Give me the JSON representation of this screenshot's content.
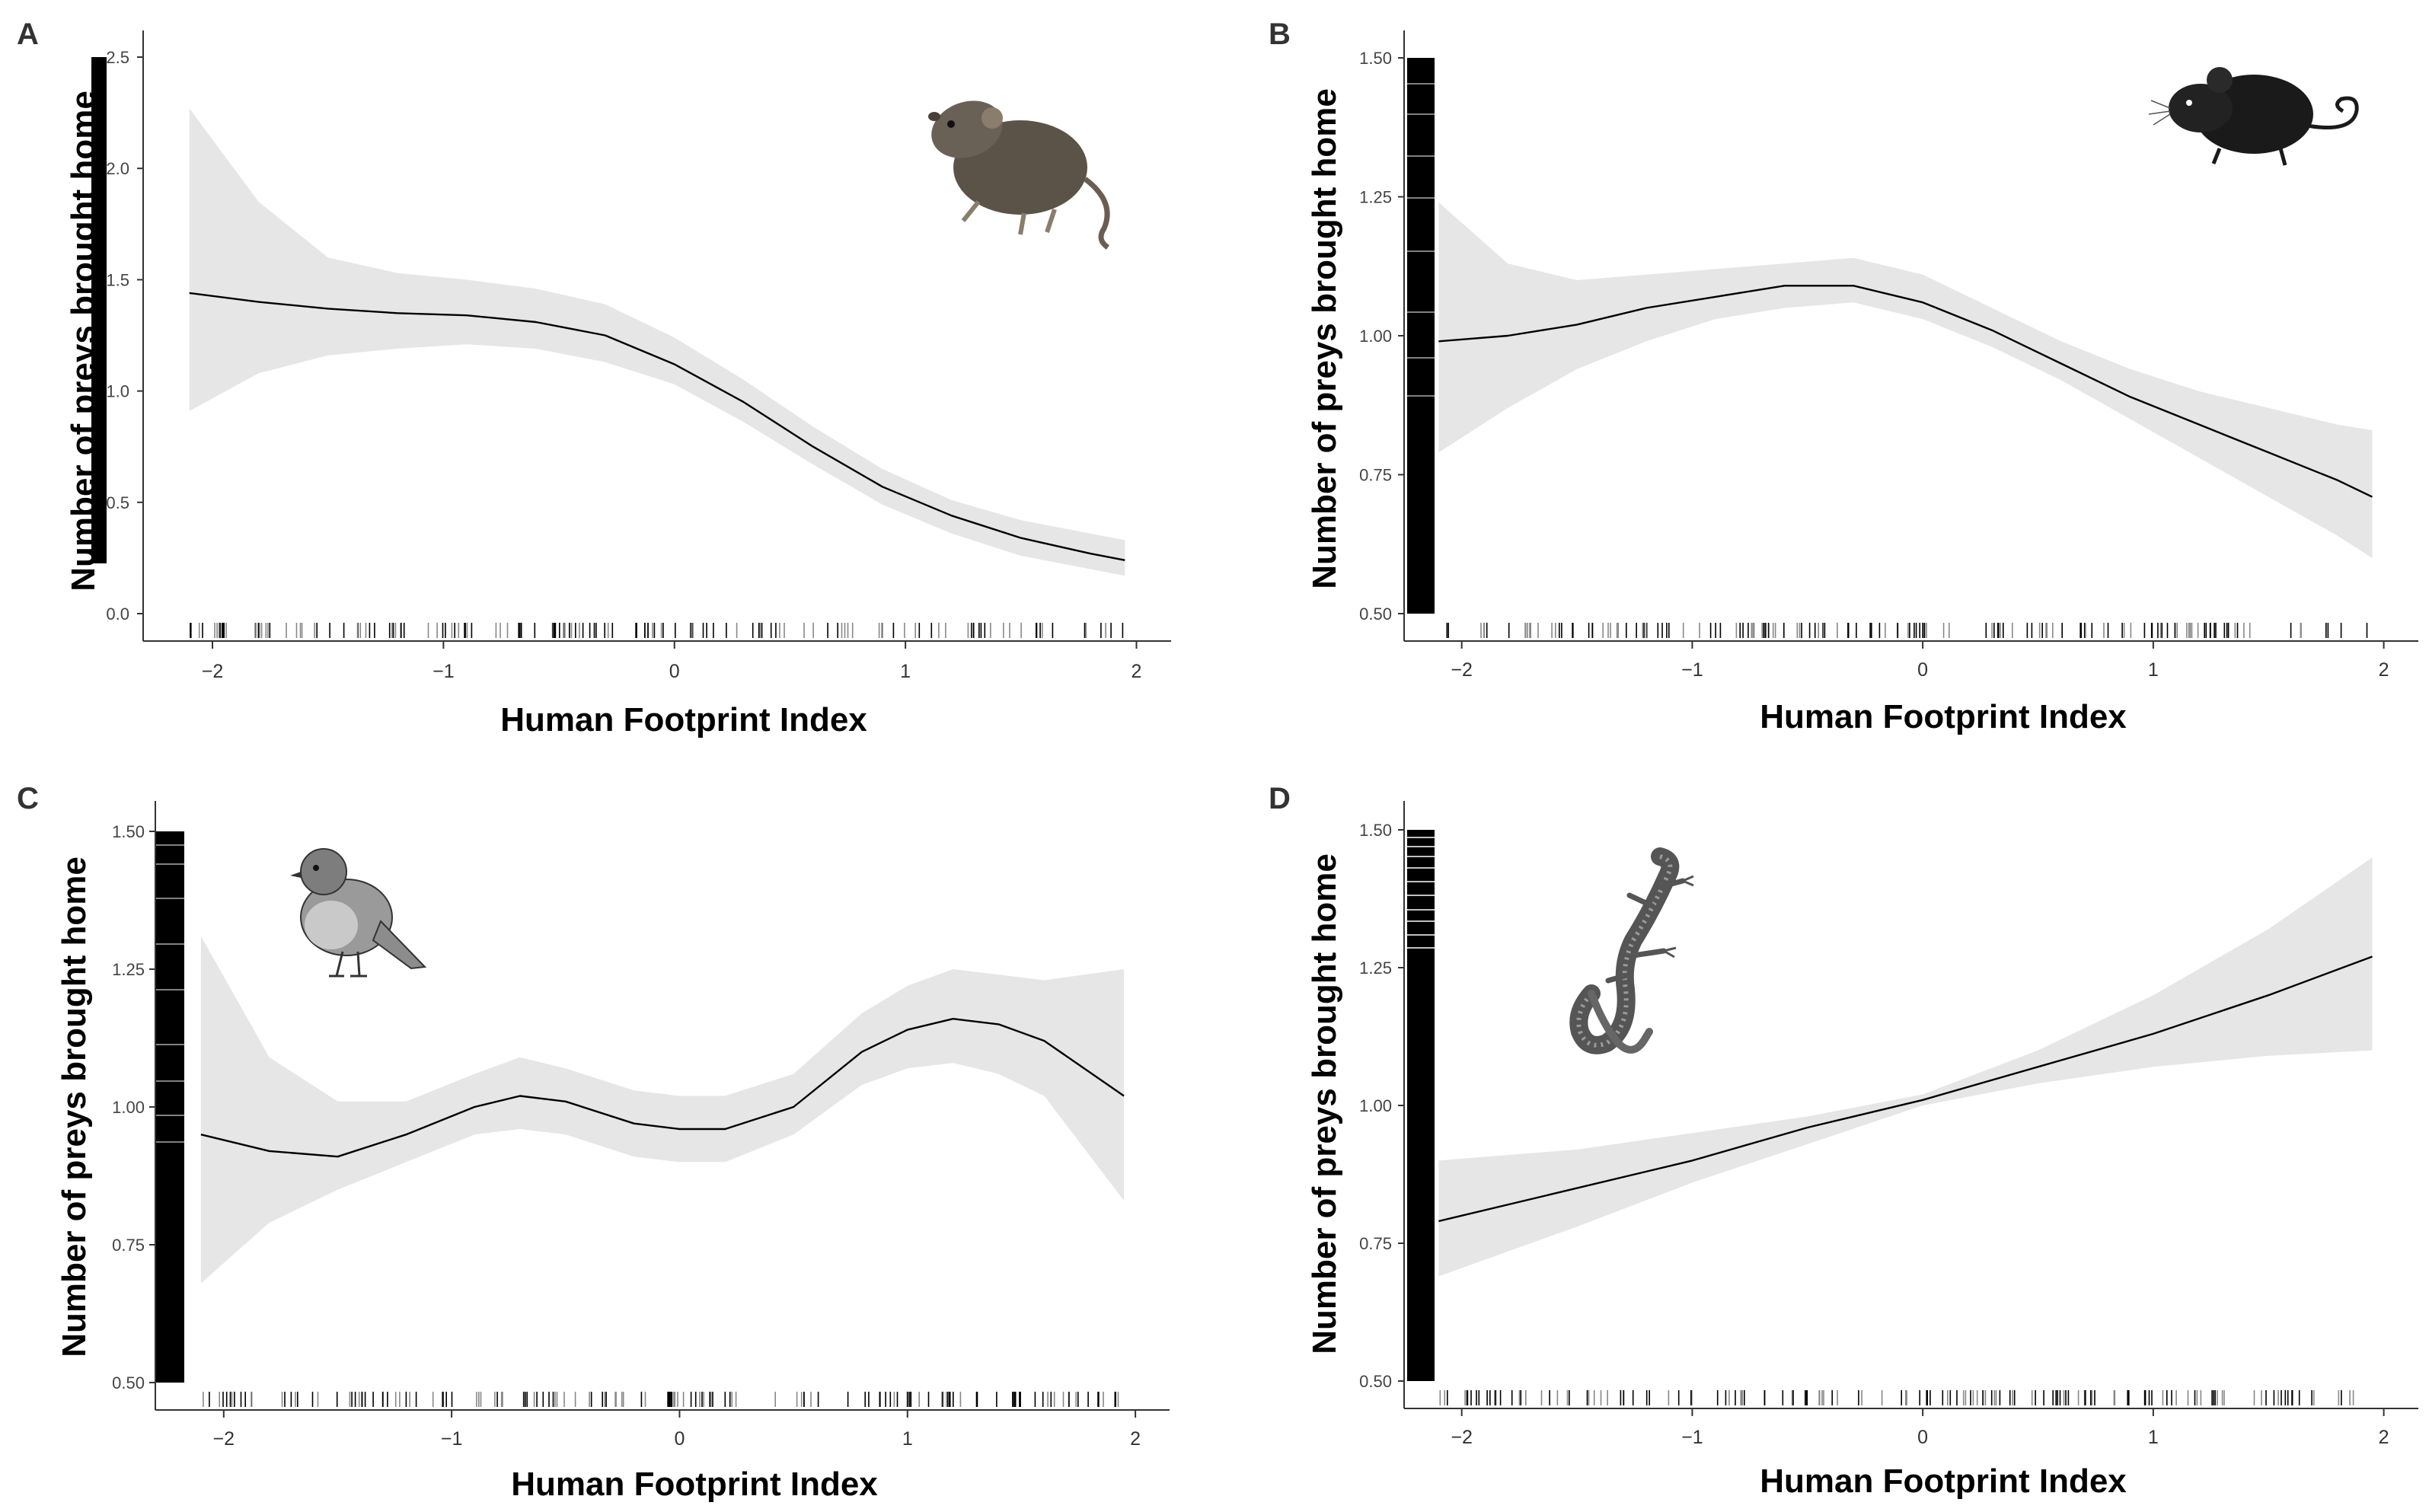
{
  "figure": {
    "line_color": "#000000",
    "band_color": "#e6e6e6",
    "rug_color": "#000000",
    "axis_color": "#333333"
  },
  "chart_data": [
    {
      "panel": "A",
      "type": "line",
      "icon": "vole-icon",
      "xlabel": "Human Footprint Index",
      "ylabel": "Number of preys brought home",
      "xlim": [
        -2.3,
        2.15
      ],
      "ylim": [
        -0.07,
        2.65
      ],
      "xticks": [
        -2,
        -1,
        0,
        1,
        2
      ],
      "xtick_labels": [
        "−2",
        "−1",
        "0",
        "1",
        "2"
      ],
      "yticks": [
        0.0,
        0.5,
        1.0,
        1.5,
        2.0,
        2.5
      ],
      "ytick_labels": [
        "0.0",
        "0.5",
        "1.0",
        "1.5",
        "2.0",
        "2.5"
      ],
      "x": [
        -2.1,
        -1.8,
        -1.5,
        -1.2,
        -0.9,
        -0.6,
        -0.3,
        0.0,
        0.3,
        0.6,
        0.9,
        1.2,
        1.5,
        1.8,
        1.95
      ],
      "fit": [
        1.44,
        1.4,
        1.37,
        1.35,
        1.34,
        1.31,
        1.25,
        1.12,
        0.95,
        0.75,
        0.57,
        0.44,
        0.34,
        0.27,
        0.24
      ],
      "lower": [
        0.91,
        1.08,
        1.16,
        1.19,
        1.21,
        1.19,
        1.13,
        1.03,
        0.86,
        0.67,
        0.49,
        0.36,
        0.26,
        0.2,
        0.17
      ],
      "upper": [
        2.27,
        1.85,
        1.6,
        1.53,
        1.5,
        1.46,
        1.39,
        1.24,
        1.05,
        0.84,
        0.65,
        0.51,
        0.42,
        0.36,
        0.33
      ]
    },
    {
      "panel": "B",
      "type": "line",
      "icon": "mouse-icon",
      "xlabel": "Human Footprint Index",
      "ylabel": "Number of preys brought home",
      "xlim": [
        -2.25,
        2.15
      ],
      "ylim": [
        0.475,
        1.55
      ],
      "xticks": [
        -2,
        -1,
        0,
        1,
        2
      ],
      "xtick_labels": [
        "−2",
        "−1",
        "0",
        "1",
        "2"
      ],
      "yticks": [
        0.5,
        0.75,
        1.0,
        1.25,
        1.5
      ],
      "ytick_labels": [
        "0.50",
        "0.75",
        "1.00",
        "1.25",
        "1.50"
      ],
      "x": [
        -2.1,
        -1.8,
        -1.5,
        -1.2,
        -0.9,
        -0.6,
        -0.3,
        0.0,
        0.3,
        0.6,
        0.9,
        1.2,
        1.5,
        1.8,
        1.95
      ],
      "fit": [
        0.99,
        1.0,
        1.02,
        1.05,
        1.07,
        1.09,
        1.09,
        1.06,
        1.01,
        0.95,
        0.89,
        0.84,
        0.79,
        0.74,
        0.71
      ],
      "lower": [
        0.79,
        0.87,
        0.94,
        0.99,
        1.03,
        1.05,
        1.06,
        1.03,
        0.98,
        0.92,
        0.85,
        0.78,
        0.71,
        0.64,
        0.6
      ],
      "upper": [
        1.24,
        1.13,
        1.1,
        1.11,
        1.12,
        1.13,
        1.14,
        1.11,
        1.05,
        0.99,
        0.94,
        0.9,
        0.87,
        0.84,
        0.83
      ]
    },
    {
      "panel": "C",
      "type": "line",
      "icon": "robin-icon",
      "xlabel": "Human Footprint Index",
      "ylabel": "Number of preys brought home",
      "xlim": [
        -2.3,
        2.15
      ],
      "ylim": [
        0.475,
        1.55
      ],
      "xticks": [
        -2,
        -1,
        0,
        1,
        2
      ],
      "xtick_labels": [
        "−2",
        "−1",
        "0",
        "1",
        "2"
      ],
      "yticks": [
        0.5,
        0.75,
        1.0,
        1.25,
        1.5
      ],
      "ytick_labels": [
        "0.50",
        "0.75",
        "1.00",
        "1.25",
        "1.50"
      ],
      "x": [
        -2.1,
        -1.8,
        -1.5,
        -1.2,
        -0.9,
        -0.7,
        -0.5,
        -0.2,
        0.0,
        0.2,
        0.5,
        0.8,
        1.0,
        1.2,
        1.4,
        1.6,
        1.95
      ],
      "fit": [
        0.95,
        0.92,
        0.91,
        0.95,
        1.0,
        1.02,
        1.01,
        0.97,
        0.96,
        0.96,
        1.0,
        1.1,
        1.14,
        1.16,
        1.15,
        1.12,
        1.02
      ],
      "lower": [
        0.68,
        0.79,
        0.85,
        0.9,
        0.95,
        0.96,
        0.95,
        0.91,
        0.9,
        0.9,
        0.95,
        1.04,
        1.07,
        1.08,
        1.06,
        1.02,
        0.83
      ],
      "upper": [
        1.31,
        1.09,
        1.01,
        1.01,
        1.06,
        1.09,
        1.07,
        1.03,
        1.02,
        1.02,
        1.06,
        1.17,
        1.22,
        1.25,
        1.24,
        1.23,
        1.25
      ]
    },
    {
      "panel": "D",
      "type": "line",
      "icon": "lizard-icon",
      "xlabel": "Human Footprint Index",
      "ylabel": "Number of preys brought home",
      "xlim": [
        -2.25,
        2.15
      ],
      "ylim": [
        0.475,
        1.55
      ],
      "xticks": [
        -2,
        -1,
        0,
        1,
        2
      ],
      "xtick_labels": [
        "−2",
        "−1",
        "0",
        "1",
        "2"
      ],
      "yticks": [
        0.5,
        0.75,
        1.0,
        1.25,
        1.5
      ],
      "ytick_labels": [
        "0.50",
        "0.75",
        "1.00",
        "1.25",
        "1.50"
      ],
      "x": [
        -2.1,
        -1.5,
        -1.0,
        -0.5,
        0.0,
        0.5,
        1.0,
        1.5,
        1.95
      ],
      "fit": [
        0.79,
        0.85,
        0.9,
        0.96,
        1.01,
        1.07,
        1.13,
        1.2,
        1.27
      ],
      "lower": [
        0.69,
        0.78,
        0.86,
        0.93,
        1.0,
        1.04,
        1.07,
        1.09,
        1.1
      ],
      "upper": [
        0.9,
        0.92,
        0.95,
        0.98,
        1.02,
        1.1,
        1.2,
        1.32,
        1.45
      ]
    }
  ]
}
